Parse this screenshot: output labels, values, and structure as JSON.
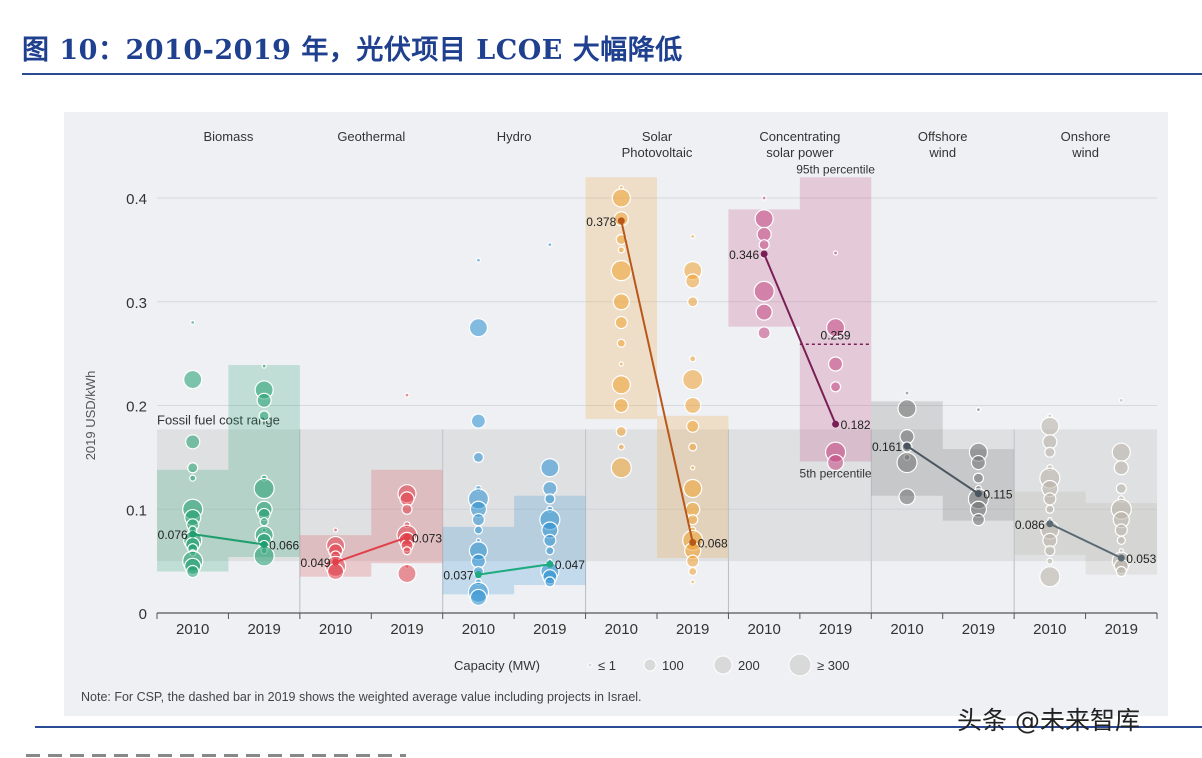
{
  "figure_title": "图 10：2010-2019 年，光伏项目 LCOE 大幅降低",
  "watermark": "头条 @未来智库",
  "chart_data": {
    "type": "scatter",
    "ylabel": "2019 USD/kWh",
    "ylim": [
      0,
      0.42
    ],
    "yticks": [
      "0",
      "0.1",
      "0.2",
      "0.3",
      "0.4"
    ],
    "ytick_values": [
      0,
      0.1,
      0.2,
      0.3,
      0.4
    ],
    "fossil_fuel_range": {
      "label": "Fossil fuel cost range",
      "low": 0.05,
      "high": 0.177
    },
    "color_fossil": "#c9cccf",
    "technologies": [
      {
        "name": "Biomass",
        "color": "#1f9e6f",
        "line": "#1f9e6f",
        "years": [
          "2010",
          "2019"
        ],
        "values": [
          0.076,
          0.066
        ],
        "labels": [
          "0.076",
          "0.066"
        ],
        "ranges": [
          [
            0.04,
            0.138
          ],
          [
            0.054,
            0.239
          ]
        ],
        "sample_points": [
          [
            0.28,
            0.225,
            0.165,
            0.14,
            0.13,
            0.1,
            0.092,
            0.085,
            0.08,
            0.075,
            0.07,
            0.066,
            0.062,
            0.058,
            0.05,
            0.045,
            0.04
          ],
          [
            0.238,
            0.215,
            0.205,
            0.19,
            0.13,
            0.12,
            0.1,
            0.095,
            0.088,
            0.08,
            0.075,
            0.07,
            0.065,
            0.06,
            0.055
          ]
        ]
      },
      {
        "name": "Geothermal",
        "color": "#e0404a",
        "line": "#e0404a",
        "years": [
          "2010",
          "2019"
        ],
        "values": [
          0.049,
          0.073
        ],
        "labels": [
          "0.049",
          "0.073"
        ],
        "ranges": [
          [
            0.035,
            0.075
          ],
          [
            0.048,
            0.138
          ]
        ],
        "sample_points": [
          [
            0.08,
            0.065,
            0.06,
            0.055,
            0.049,
            0.045,
            0.04
          ],
          [
            0.21,
            0.115,
            0.11,
            0.1,
            0.085,
            0.075,
            0.07,
            0.065,
            0.06,
            0.045,
            0.038
          ]
        ]
      },
      {
        "name": "Hydro",
        "color": "#2a8fd0",
        "line": "#1faa80",
        "years": [
          "2010",
          "2019"
        ],
        "values": [
          0.037,
          0.047
        ],
        "labels": [
          "0.037",
          "0.047"
        ],
        "ranges": [
          [
            0.018,
            0.083
          ],
          [
            0.027,
            0.113
          ]
        ],
        "sample_points": [
          [
            0.34,
            0.275,
            0.185,
            0.15,
            0.12,
            0.11,
            0.1,
            0.09,
            0.08,
            0.07,
            0.06,
            0.05,
            0.04,
            0.03,
            0.02,
            0.015
          ],
          [
            0.355,
            0.14,
            0.12,
            0.11,
            0.1,
            0.09,
            0.08,
            0.07,
            0.06,
            0.05,
            0.04,
            0.035,
            0.03
          ]
        ]
      },
      {
        "name": "Solar Photovoltaic",
        "label_lines": [
          "Solar",
          "Photovoltaic"
        ],
        "color": "#f0a030",
        "line": "#b8571a",
        "years": [
          "2010",
          "2019"
        ],
        "values": [
          0.378,
          0.068
        ],
        "labels": [
          "0.378",
          "0.068"
        ],
        "ranges": [
          [
            0.187,
            0.42
          ],
          [
            0.053,
            0.19
          ]
        ],
        "sample_points": [
          [
            0.41,
            0.4,
            0.38,
            0.36,
            0.35,
            0.33,
            0.3,
            0.28,
            0.26,
            0.24,
            0.22,
            0.2,
            0.175,
            0.16,
            0.14
          ],
          [
            0.363,
            0.33,
            0.32,
            0.3,
            0.245,
            0.225,
            0.2,
            0.18,
            0.16,
            0.14,
            0.12,
            0.1,
            0.09,
            0.08,
            0.07,
            0.06,
            0.05,
            0.04,
            0.03
          ]
        ]
      },
      {
        "name": "Concentrating solar power",
        "label_lines": [
          "Concentrating",
          "solar power"
        ],
        "color": "#c2457f",
        "line": "#7a1f55",
        "years": [
          "2010",
          "2019"
        ],
        "values": [
          0.346,
          0.182
        ],
        "labels": [
          "0.346",
          "0.182"
        ],
        "ranges": [
          [
            0.276,
            0.389
          ],
          [
            0.146,
            0.42
          ]
        ],
        "sample_points": [
          [
            0.4,
            0.38,
            0.365,
            0.355,
            0.345,
            0.31,
            0.29,
            0.27
          ],
          [
            0.347,
            0.275,
            0.24,
            0.218,
            0.182,
            0.155,
            0.145
          ]
        ],
        "weighted_average_2019": 0.259,
        "weighted_average_label": "0.259",
        "percentile_high_label": "95th percentile",
        "percentile_low_label": "5th percentile"
      },
      {
        "name": "Offshore wind",
        "label_lines": [
          "Offshore",
          "wind"
        ],
        "color": "#707070",
        "line": "#4a5560",
        "years": [
          "2010",
          "2019"
        ],
        "values": [
          0.161,
          0.115
        ],
        "labels": [
          "0.161",
          "0.115"
        ],
        "ranges": [
          [
            0.113,
            0.204
          ],
          [
            0.089,
            0.158
          ]
        ],
        "sample_points": [
          [
            0.212,
            0.197,
            0.17,
            0.16,
            0.15,
            0.145,
            0.112
          ],
          [
            0.196,
            0.155,
            0.145,
            0.13,
            0.12,
            0.11,
            0.1,
            0.09
          ]
        ]
      },
      {
        "name": "Onshore wind",
        "label_lines": [
          "Onshore",
          "wind"
        ],
        "color": "#b8b1a6",
        "line": "#5a6a72",
        "years": [
          "2010",
          "2019"
        ],
        "values": [
          0.086,
          0.053
        ],
        "labels": [
          "0.086",
          "0.053"
        ],
        "ranges": [
          [
            0.056,
            0.117
          ],
          [
            0.037,
            0.106
          ]
        ],
        "sample_points": [
          [
            0.19,
            0.18,
            0.165,
            0.155,
            0.14,
            0.13,
            0.12,
            0.11,
            0.1,
            0.09,
            0.08,
            0.07,
            0.06,
            0.05,
            0.035
          ],
          [
            0.205,
            0.155,
            0.14,
            0.12,
            0.11,
            0.1,
            0.09,
            0.08,
            0.07,
            0.06,
            0.05,
            0.045,
            0.04
          ]
        ]
      }
    ],
    "legend": {
      "title": "Capacity (MW)",
      "items": [
        "≤ 1",
        "100",
        "200",
        "≥ 300"
      ]
    },
    "note": "Note: For CSP, the dashed bar in 2019 shows the weighted average value including projects in Israel."
  }
}
